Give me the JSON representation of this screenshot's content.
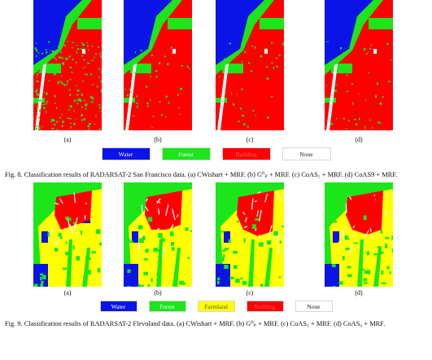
{
  "fig8": {
    "panels": [
      {
        "label": "(a)"
      },
      {
        "label": "(b)"
      },
      {
        "label": "(c)"
      },
      {
        "label": "(d)"
      }
    ],
    "legend": [
      {
        "name": "Water",
        "color": "#0a14e6",
        "text_color": "#ffffff"
      },
      {
        "name": "Forest",
        "color": "#1ae61a",
        "text_color": "#ffffff"
      },
      {
        "name": "Building",
        "color": "#ff0000",
        "text_color": "#ff6060"
      },
      {
        "name": "None",
        "color": "#ffffff",
        "text_color": "#222222"
      }
    ],
    "caption": "Fig. 8.   Classification results of RADARSAT-2 San Francisco data. (a) CWishart + MRF. (b) G⁰ₚ + MRF. (c) CoAS₅ + MRF. (d) CoAS9 + MRF."
  },
  "fig9": {
    "panels": [
      {
        "label": "(a)"
      },
      {
        "label": "(b)"
      },
      {
        "label": "(c)"
      },
      {
        "label": "(d)"
      }
    ],
    "legend": [
      {
        "name": "Water",
        "color": "#0a14e6",
        "text_color": "#ffffff"
      },
      {
        "name": "Forest",
        "color": "#1ae61a",
        "text_color": "#ffffff"
      },
      {
        "name": "Farmland",
        "color": "#ffff00",
        "text_color": "#555555"
      },
      {
        "name": "Building",
        "color": "#ff0000",
        "text_color": "#ff6060"
      },
      {
        "name": "None",
        "color": "#ffffff",
        "text_color": "#222222"
      }
    ],
    "caption": "Fig. 9.   Classification results of RADARSAT-2 Flevoland data. (a) CWishart + MRF. (b) G⁰ₚ + MRF. (c) CoAS₅ + MRF. (d) CoAS₉ + MRF."
  }
}
